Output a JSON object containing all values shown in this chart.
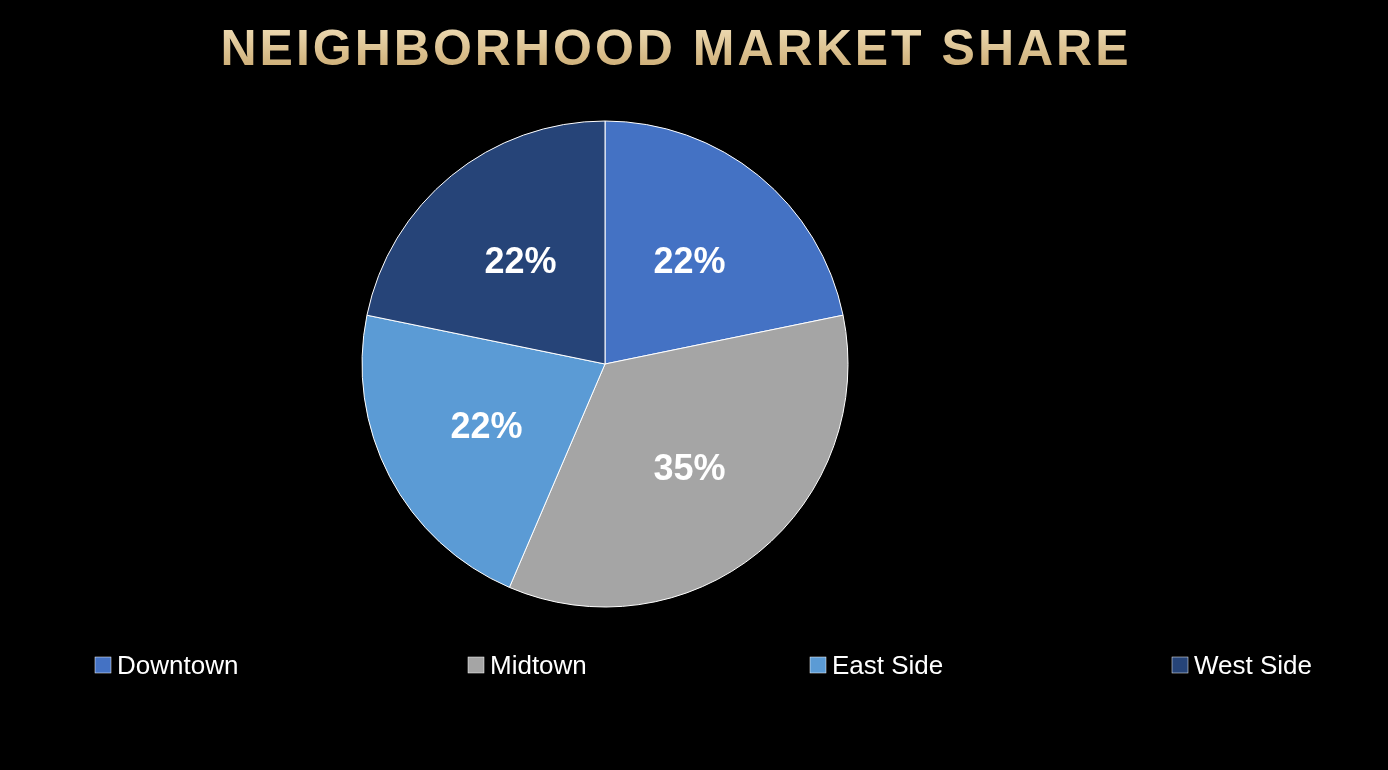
{
  "chart_data": {
    "type": "pie",
    "title": "NEIGHBORHOOD MARKET SHARE",
    "categories": [
      "Downtown",
      "Midtown",
      "East Side",
      "West Side"
    ],
    "values": [
      22,
      35,
      22,
      22
    ],
    "colors": [
      "#4472c4",
      "#a5a5a5",
      "#5b9bd5",
      "#264478"
    ],
    "value_labels": [
      "22%",
      "35%",
      "22%",
      "22%"
    ],
    "legend": "bottom"
  }
}
